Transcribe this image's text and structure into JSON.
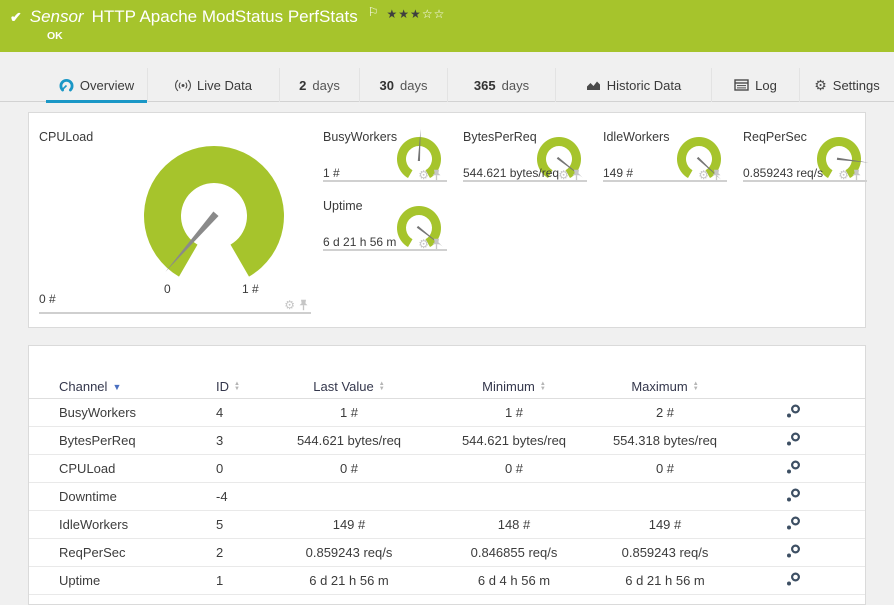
{
  "colors": {
    "brand_green": "#a6c42c",
    "accent_blue": "#1a97c6",
    "needle_gray": "#8a8a8a",
    "icon_gray": "#c6c6c6",
    "edit_icon_navy": "#3d4f63"
  },
  "header": {
    "check_icon": "check-icon",
    "type_label": "Sensor",
    "title": "HTTP Apache ModStatus PerfStats",
    "flag_icon": "flag-icon",
    "rating_filled": "★★★",
    "rating_empty": "☆☆",
    "status": "OK"
  },
  "tabs": [
    {
      "icon": "gauge-icon",
      "strong": "",
      "label": "Overview",
      "active": true
    },
    {
      "icon": "live-data-icon",
      "strong": "",
      "label": "Live Data",
      "active": false
    },
    {
      "icon": "",
      "strong": "2",
      "label": "days",
      "active": false
    },
    {
      "icon": "",
      "strong": "30",
      "label": "days",
      "active": false
    },
    {
      "icon": "",
      "strong": "365",
      "label": "days",
      "active": false
    },
    {
      "icon": "historic-data-icon",
      "strong": "",
      "label": "Historic Data",
      "active": false
    },
    {
      "icon": "log-icon",
      "strong": "",
      "label": "Log",
      "active": false
    },
    {
      "icon": "settings-icon",
      "strong": "",
      "label": "Settings",
      "active": false
    }
  ],
  "overview": {
    "cpu_gauge": {
      "title": "CPULoad",
      "scale_min": "0",
      "scale_max": "1 #",
      "axis_min": "0 #",
      "needle_deg": -139
    },
    "mini_gauges": [
      {
        "title": "BusyWorkers",
        "value": "1 #",
        "needle_deg": 3
      },
      {
        "title": "BytesPerReq",
        "value": "544.621 bytes/req",
        "needle_deg": 128
      },
      {
        "title": "IdleWorkers",
        "value": "149 #",
        "needle_deg": 133
      },
      {
        "title": "ReqPerSec",
        "value": "0.859243 req/s",
        "needle_deg": 97
      },
      {
        "title": "Uptime",
        "value": "6 d 21 h 56 m",
        "needle_deg": 128
      }
    ]
  },
  "table": {
    "headers": {
      "channel": "Channel",
      "id": "ID",
      "last": "Last Value",
      "min": "Minimum",
      "max": "Maximum"
    },
    "sorted_by": "Channel",
    "rows": [
      {
        "channel": "BusyWorkers",
        "id": "4",
        "last": "1 #",
        "min": "1 #",
        "max": "2 #"
      },
      {
        "channel": "BytesPerReq",
        "id": "3",
        "last": "544.621 bytes/req",
        "min": "544.621 bytes/req",
        "max": "554.318 bytes/req"
      },
      {
        "channel": "CPULoad",
        "id": "0",
        "last": "0 #",
        "min": "0 #",
        "max": "0 #"
      },
      {
        "channel": "Downtime",
        "id": "-4",
        "last": "",
        "min": "",
        "max": ""
      },
      {
        "channel": "IdleWorkers",
        "id": "5",
        "last": "149 #",
        "min": "148 #",
        "max": "149 #"
      },
      {
        "channel": "ReqPerSec",
        "id": "2",
        "last": "0.859243 req/s",
        "min": "0.846855 req/s",
        "max": "0.859243 req/s"
      },
      {
        "channel": "Uptime",
        "id": "1",
        "last": "6 d 21 h 56 m",
        "min": "6 d 4 h 56 m",
        "max": "6 d 21 h 56 m"
      }
    ]
  }
}
